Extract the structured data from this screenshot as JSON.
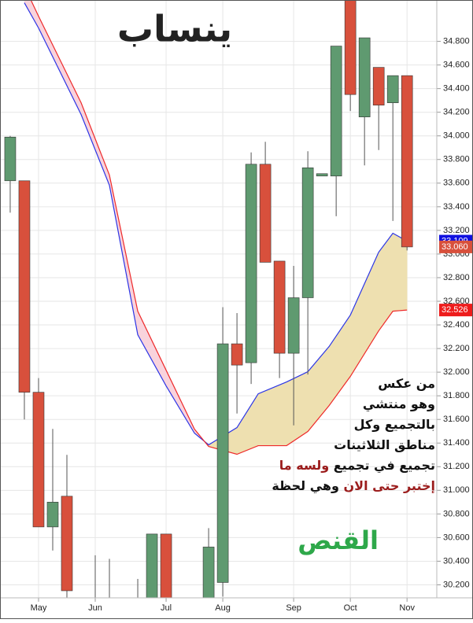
{
  "chart_data": {
    "type": "candlestick",
    "title": "ينساب",
    "title_color": "#3b4bd0",
    "x": [
      0,
      1,
      2,
      3,
      4,
      6,
      7,
      9,
      10,
      11,
      14,
      15,
      16,
      17,
      18,
      19,
      20,
      21,
      22,
      23,
      24,
      25,
      26,
      27,
      28
    ],
    "open": [
      33.62,
      33.62,
      31.83,
      30.69,
      30.95,
      29.95,
      29.95,
      29.95,
      30.05,
      30.63,
      30.0,
      30.22,
      32.24,
      32.08,
      33.76,
      32.94,
      32.16,
      32.63,
      33.66,
      33.66,
      35.2,
      34.16,
      34.58,
      34.28,
      34.51
    ],
    "high": [
      34.0,
      33.62,
      31.95,
      31.52,
      31.3,
      30.45,
      30.42,
      30.25,
      30.63,
      30.63,
      30.68,
      32.55,
      32.5,
      33.86,
      33.95,
      32.94,
      32.9,
      33.87,
      33.68,
      34.76,
      35.3,
      34.83,
      34.58,
      34.51,
      34.51
    ],
    "low": [
      33.35,
      31.6,
      30.69,
      30.49,
      30.09,
      29.8,
      29.8,
      29.8,
      29.9,
      29.9,
      29.9,
      30.1,
      31.65,
      31.9,
      32.93,
      31.95,
      31.55,
      31.98,
      33.66,
      33.32,
      34.21,
      33.75,
      33.88,
      33.28,
      33.03
    ],
    "close": [
      33.99,
      31.83,
      30.69,
      30.9,
      30.15,
      29.85,
      29.85,
      29.85,
      30.63,
      30.05,
      30.52,
      32.24,
      32.06,
      33.76,
      32.93,
      32.16,
      32.63,
      33.73,
      33.68,
      34.76,
      34.35,
      34.83,
      34.26,
      34.51,
      33.06
    ],
    "up_color": "#5f9a70",
    "down_color": "#d8503c",
    "overlay_x": [
      1,
      2,
      5,
      7,
      9,
      11,
      13,
      14,
      16,
      17.5,
      19.5,
      21,
      22.5,
      24,
      26,
      27,
      28
    ],
    "overlays": [
      {
        "color": "#2b35e6",
        "values": [
          35.126,
          34.913,
          34.181,
          33.582,
          32.317,
          31.884,
          31.484,
          31.385,
          31.531,
          31.817,
          31.917,
          32.004,
          32.217,
          32.483,
          33.016,
          33.176,
          33.109
        ]
      },
      {
        "color": "#ee2a2a",
        "values": [
          35.266,
          35.013,
          34.281,
          33.668,
          32.516,
          32.017,
          31.518,
          31.371,
          31.305,
          31.378,
          31.378,
          31.498,
          31.717,
          31.964,
          32.35,
          32.516,
          32.526
        ]
      }
    ],
    "cloud_colors": [
      "#f9d3dc",
      "#eee0b0"
    ],
    "xlim": [
      -0.72,
      30.1
    ],
    "xticks": [
      {
        "value": 2,
        "label": "May"
      },
      {
        "value": 6,
        "label": "Jun"
      },
      {
        "value": 11,
        "label": "Jul"
      },
      {
        "value": 15,
        "label": "Aug"
      },
      {
        "value": 20,
        "label": "Sep"
      },
      {
        "value": 24,
        "label": "Oct"
      },
      {
        "value": 28,
        "label": "Nov"
      }
    ],
    "ylim": [
      30.09,
      35.15
    ],
    "yticks": [
      {
        "value": 30.2,
        "label": "30.200"
      },
      {
        "value": 30.4,
        "label": "30.400"
      },
      {
        "value": 30.6,
        "label": "30.600"
      },
      {
        "value": 30.8,
        "label": "30.800"
      },
      {
        "value": 31.0,
        "label": "31.000"
      },
      {
        "value": 31.2,
        "label": "31.200"
      },
      {
        "value": 31.4,
        "label": "31.400"
      },
      {
        "value": 31.6,
        "label": "31.600"
      },
      {
        "value": 31.8,
        "label": "31.800"
      },
      {
        "value": 32.0,
        "label": "32.000"
      },
      {
        "value": 32.2,
        "label": "32.200"
      },
      {
        "value": 32.4,
        "label": "32.400"
      },
      {
        "value": 32.6,
        "label": "32.600"
      },
      {
        "value": 32.8,
        "label": "32.800"
      },
      {
        "value": 33.0,
        "label": "33.000"
      },
      {
        "value": 33.2,
        "label": "33.200"
      },
      {
        "value": 33.4,
        "label": "33.400"
      },
      {
        "value": 33.6,
        "label": "33.600"
      },
      {
        "value": 33.8,
        "label": "33.800"
      },
      {
        "value": 34.0,
        "label": "34.000"
      },
      {
        "value": 34.2,
        "label": "34.200"
      },
      {
        "value": 34.4,
        "label": "34.400"
      },
      {
        "value": 34.6,
        "label": "34.600"
      },
      {
        "value": 34.8,
        "label": "34.800"
      }
    ],
    "grid": true,
    "price_labels": [
      {
        "value": 33.109,
        "label": "33.109",
        "color": "#1010e0"
      },
      {
        "value": 33.06,
        "label": "33.060",
        "color": "#d8503c"
      },
      {
        "value": 32.526,
        "label": "32.526",
        "color": "#ee1c1c"
      }
    ],
    "annotation_lines": [
      [
        {
          "text": "من عكس",
          "color": "#111111"
        }
      ],
      [
        {
          "text": "وهو منتشي",
          "color": "#111111"
        }
      ],
      [
        {
          "text": "بالتجميع وكل",
          "color": "#111111"
        }
      ],
      [
        {
          "text": "مناطق الثلاثينات",
          "color": "#111111"
        }
      ],
      [
        {
          "text": "تجميع في تجميع ",
          "color": "#111111"
        },
        {
          "text": "ولسه ما",
          "color": "#9b1c1c"
        }
      ],
      [
        {
          "text": "إختبر حتى الان ",
          "color": "#9b1c1c"
        },
        {
          "text": " وهي لحظة",
          "color": "#111111"
        }
      ]
    ],
    "conclusion": "القنص",
    "conclusion_color": "#2ea84a"
  }
}
